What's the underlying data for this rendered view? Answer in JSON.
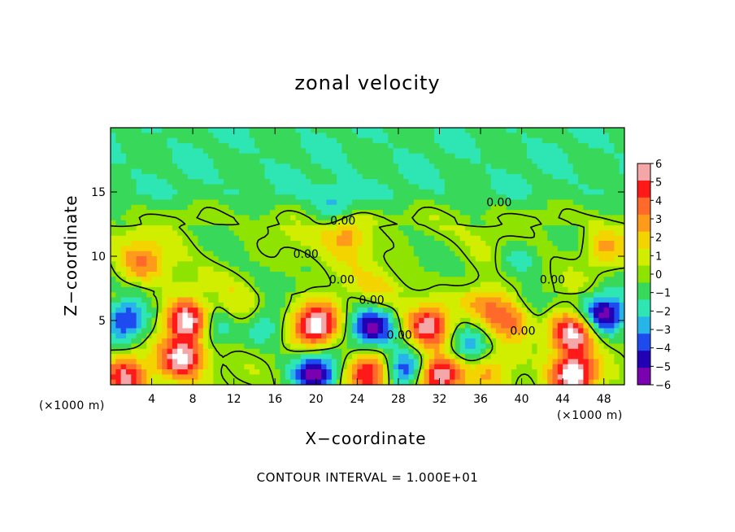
{
  "chart_data": {
    "type": "heatmap",
    "title": "zonal velocity",
    "xlabel": "X−coordinate",
    "ylabel": "Z−coordinate",
    "x_unit": "(×1000 m)",
    "x_range": [
      0,
      50
    ],
    "y_range": [
      0,
      20
    ],
    "x_ticks": [
      4,
      8,
      12,
      16,
      20,
      24,
      28,
      32,
      36,
      40,
      44,
      48
    ],
    "y_ticks": [
      5,
      10,
      15
    ],
    "colorbar": {
      "ticks": [
        "6",
        "5",
        "4",
        "3",
        "2",
        "1",
        "0",
        "−1",
        "−2",
        "−3",
        "−4",
        "−5",
        "−6"
      ],
      "colors": [
        "#f5a7a7",
        "#ff1a1a",
        "#ff6a2a",
        "#ff9a1a",
        "#f4d400",
        "#d2ee00",
        "#8ee400",
        "#38d85a",
        "#2ee6b4",
        "#27b4e8",
        "#1e4bf0",
        "#2200b4",
        "#7a00b0"
      ]
    },
    "contour_label_value": "0.00",
    "contour_labels": [
      {
        "x": 22.6,
        "y": 12.8
      },
      {
        "x": 19.0,
        "y": 10.2
      },
      {
        "x": 22.5,
        "y": 8.2
      },
      {
        "x": 25.4,
        "y": 6.6
      },
      {
        "x": 28.1,
        "y": 3.9
      },
      {
        "x": 37.8,
        "y": 14.2
      },
      {
        "x": 43.0,
        "y": 8.2
      },
      {
        "x": 40.1,
        "y": 4.2
      }
    ],
    "contour_interval_text": "CONTOUR INTERVAL = 1.000E+01",
    "anomalies": [
      {
        "x": 1.5,
        "y": 5.0,
        "v": -4.5
      },
      {
        "x": 7.5,
        "y": 5.0,
        "v": 7.0
      },
      {
        "x": 7.0,
        "y": 2.0,
        "v": 7.0
      },
      {
        "x": 1.5,
        "y": 0.6,
        "v": 5.5
      },
      {
        "x": 10.5,
        "y": 4.8,
        "v": -4.0
      },
      {
        "x": 12.0,
        "y": 5.5,
        "v": 3.0
      },
      {
        "x": 15.0,
        "y": 4.5,
        "v": -2.5
      },
      {
        "x": 20.0,
        "y": 4.6,
        "v": 7.5
      },
      {
        "x": 20.0,
        "y": 0.9,
        "v": -6.0
      },
      {
        "x": 25.5,
        "y": 4.5,
        "v": -6.0
      },
      {
        "x": 25.2,
        "y": 0.8,
        "v": 6.0
      },
      {
        "x": 28.5,
        "y": 1.2,
        "v": -5.0
      },
      {
        "x": 31.0,
        "y": 4.5,
        "v": 6.0
      },
      {
        "x": 32.0,
        "y": 0.8,
        "v": 7.0
      },
      {
        "x": 34.8,
        "y": 3.0,
        "v": -3.0
      },
      {
        "x": 37.0,
        "y": 1.0,
        "v": 2.5
      },
      {
        "x": 39.0,
        "y": 5.2,
        "v": 4.5
      },
      {
        "x": 41.0,
        "y": 6.2,
        "v": -2.5
      },
      {
        "x": 45.0,
        "y": 4.0,
        "v": 7.0
      },
      {
        "x": 48.0,
        "y": 5.5,
        "v": -6.0
      },
      {
        "x": 45.0,
        "y": 0.8,
        "v": 7.5
      },
      {
        "x": 23.0,
        "y": 11.8,
        "v": 3.5
      },
      {
        "x": 22.0,
        "y": 13.8,
        "v": -2.5
      },
      {
        "x": 3.0,
        "y": 9.5,
        "v": 3.0
      },
      {
        "x": 48.0,
        "y": 10.6,
        "v": 3.0
      },
      {
        "x": 39.5,
        "y": 9.7,
        "v": -2.5
      },
      {
        "x": 36.5,
        "y": 6.3,
        "v": 3.0
      },
      {
        "x": 26.0,
        "y": 6.8,
        "v": 1.8
      }
    ]
  }
}
